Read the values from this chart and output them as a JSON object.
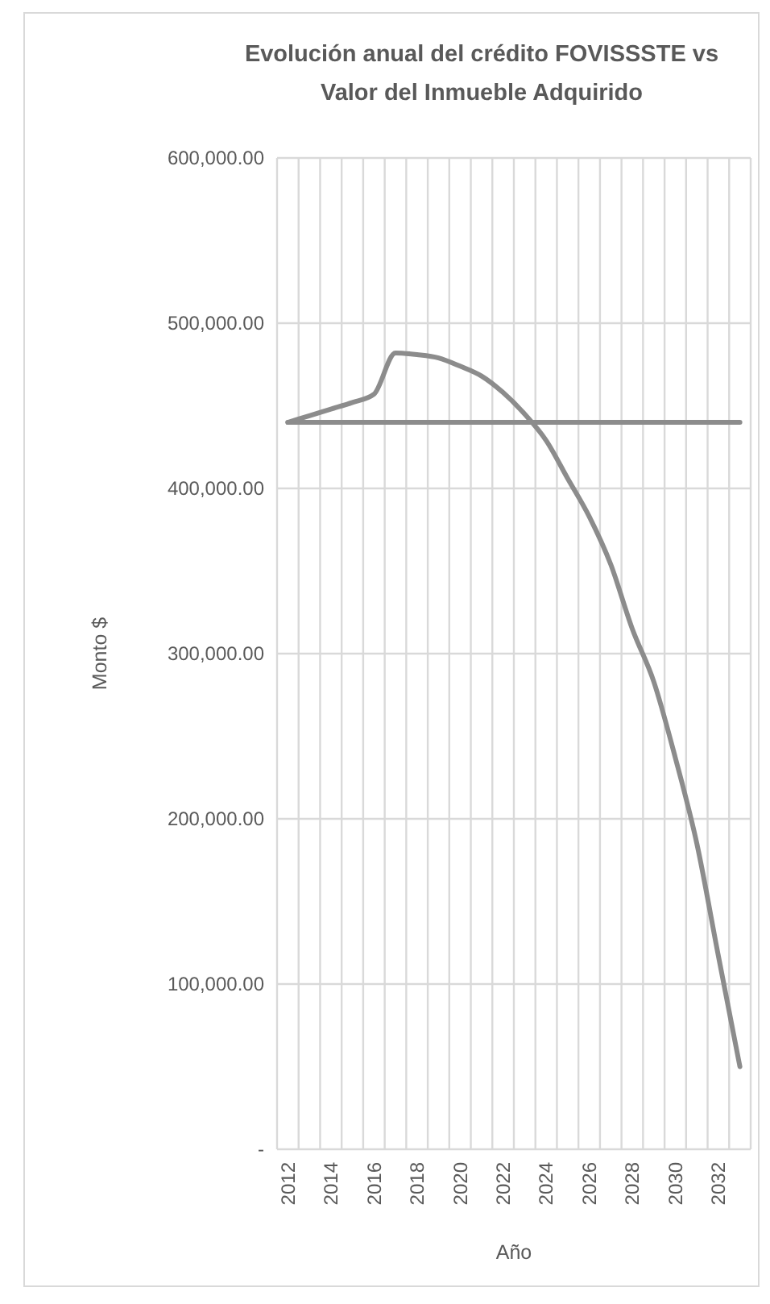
{
  "chart_data": {
    "type": "line",
    "title": "Evolución anual del crédito FOVISSSTE vs Valor del Inmueble Adquirido",
    "xlabel": "Año",
    "ylabel": "Monto $",
    "categories": [
      "2012",
      null,
      "2014",
      null,
      "2016",
      null,
      "2018",
      null,
      "2020",
      null,
      "2022",
      null,
      "2024",
      null,
      "2026",
      null,
      "2028",
      null,
      "2030",
      null,
      "2032",
      null
    ],
    "series": [
      {
        "color": "#8c8c8c",
        "values": [
          440000,
          440000,
          440000,
          440000,
          440000,
          440000,
          440000,
          440000,
          440000,
          440000,
          440000,
          440000,
          440000,
          440000,
          440000,
          440000,
          440000,
          440000,
          440000,
          440000,
          440000,
          440000
        ]
      },
      {
        "color": "#8c8c8c",
        "values": [
          440000,
          444000,
          448000,
          452000,
          457000,
          482000,
          481000,
          479000,
          474000,
          468000,
          458000,
          445000,
          429000,
          406000,
          383000,
          354000,
          315000,
          283000,
          237000,
          185000,
          117000,
          50000
        ]
      }
    ],
    "ylim": [
      0,
      600000
    ],
    "yticks": [
      {
        "value": 0,
        "label": "-"
      },
      {
        "value": 100000,
        "label": "100,000.00"
      },
      {
        "value": 200000,
        "label": "200,000.00"
      },
      {
        "value": 300000,
        "label": "300,000.00"
      },
      {
        "value": 400000,
        "label": "400,000.00"
      },
      {
        "value": 500000,
        "label": "500,000.00"
      },
      {
        "value": 600000,
        "label": "600,000.00"
      }
    ],
    "grid": true,
    "marker": "none",
    "line_style": "solid"
  }
}
